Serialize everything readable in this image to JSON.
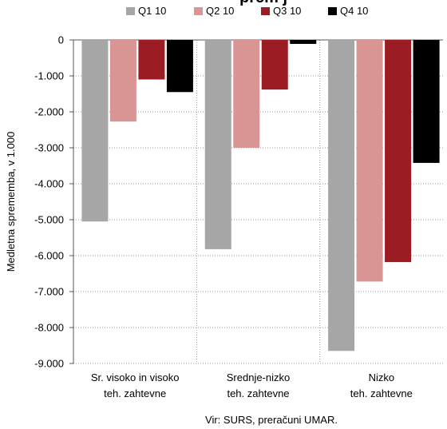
{
  "chart_data": {
    "type": "bar",
    "title": "...sprememba ... zaposlenih ...",
    "title_visible": "prem              j",
    "ylabel": "Medletna sprememba, v 1.000",
    "xlabel": "",
    "source": "Vir: SURS, preračuni UMAR.",
    "ylim": [
      -9000,
      0
    ],
    "yticks": [
      0,
      -1000,
      -2000,
      -3000,
      -4000,
      -5000,
      -6000,
      -7000,
      -8000,
      -9000
    ],
    "ytick_labels": [
      "0",
      "-1.000",
      "-2.000",
      "-3.000",
      "-4.000",
      "-5.000",
      "-6.000",
      "-7.000",
      "-8.000",
      "-9.000"
    ],
    "categories": [
      [
        "Sr. visoko in visoko",
        "teh. zahtevne"
      ],
      [
        "Srednje-nizko",
        "teh. zahtevne"
      ],
      [
        "Nizko",
        "teh. zahtevne"
      ]
    ],
    "grid": "horizontal dotted",
    "legend_position": "top",
    "series": [
      {
        "name": "Q1 10",
        "color": "#a6a6a6",
        "values": [
          -5050,
          -5820,
          -8650
        ]
      },
      {
        "name": "Q2 10",
        "color": "#d99594",
        "values": [
          -2270,
          -3000,
          -6720
        ]
      },
      {
        "name": "Q3 10",
        "color": "#9b1c23",
        "values": [
          -1100,
          -1380,
          -6180
        ]
      },
      {
        "name": "Q4 10",
        "color": "#000000",
        "values": [
          -1450,
          -110,
          -3420
        ]
      }
    ]
  }
}
